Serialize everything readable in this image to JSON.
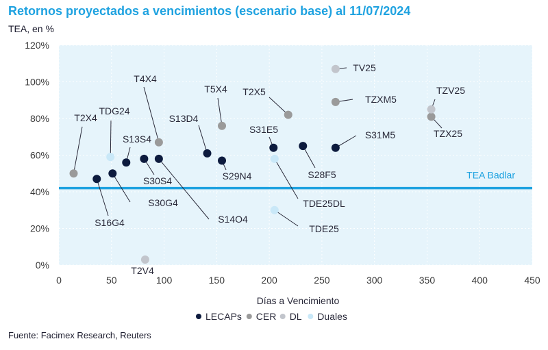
{
  "header": {
    "title": "Retornos proyectados a vencimientos (escenario base) al 11/07/2024",
    "subtitle": "TEA, en %"
  },
  "source": "Fuente: Facimex Research, Reuters",
  "colors": {
    "title": "#1ea2e0",
    "plot_bg": "#e6f4fb",
    "ref_line": "#1ea2e0",
    "LECAPs": "#0d1b3e",
    "CER": "#9a9a9a",
    "DL": "#c2c5cc",
    "Duales": "#c9e8f8"
  },
  "chart_data": {
    "type": "scatter",
    "xlabel": "Días a Vencimiento",
    "ylabel": "TEA, en %",
    "xlim": [
      0,
      450
    ],
    "ylim": [
      0,
      120
    ],
    "x_ticks": [
      0,
      50,
      100,
      150,
      200,
      250,
      300,
      350,
      400,
      450
    ],
    "y_ticks": [
      0,
      20,
      40,
      60,
      80,
      100,
      120
    ],
    "y_tick_labels": [
      "0%",
      "20%",
      "40%",
      "60%",
      "80%",
      "100%",
      "120%"
    ],
    "reference_line": {
      "label": "TEA Badlar",
      "y": 42
    },
    "legend": [
      "LECAPs",
      "CER",
      "DL",
      "Duales"
    ],
    "series": [
      {
        "name": "LECAPs",
        "points": [
          {
            "label": "S16G4",
            "x": 36,
            "y": 47
          },
          {
            "label": "S30G4",
            "x": 51,
            "y": 50
          },
          {
            "label": "S13S4",
            "x": 64,
            "y": 56
          },
          {
            "label": "S30S4",
            "x": 81,
            "y": 58
          },
          {
            "label": "S14O4",
            "x": 95,
            "y": 58
          },
          {
            "label": "S13D4",
            "x": 141,
            "y": 61
          },
          {
            "label": "S29N4",
            "x": 155,
            "y": 57
          },
          {
            "label": "S31E5",
            "x": 204,
            "y": 64
          },
          {
            "label": "S28F5",
            "x": 232,
            "y": 65
          },
          {
            "label": "S31M5",
            "x": 263,
            "y": 64
          }
        ]
      },
      {
        "name": "CER",
        "points": [
          {
            "label": "T2X4",
            "x": 14,
            "y": 50
          },
          {
            "label": "T4X4",
            "x": 95,
            "y": 67
          },
          {
            "label": "T5X4",
            "x": 155,
            "y": 76
          },
          {
            "label": "T2X5",
            "x": 218,
            "y": 82
          },
          {
            "label": "TZXM5",
            "x": 263,
            "y": 89
          },
          {
            "label": "TZX25",
            "x": 354,
            "y": 81
          }
        ]
      },
      {
        "name": "DL",
        "points": [
          {
            "label": "T2V4",
            "x": 82,
            "y": 3
          },
          {
            "label": "TV25",
            "x": 263,
            "y": 107
          },
          {
            "label": "TZV25",
            "x": 354,
            "y": 85
          }
        ]
      },
      {
        "name": "Duales",
        "points": [
          {
            "label": "TDG24",
            "x": 49,
            "y": 59
          },
          {
            "label": "TDE25DL",
            "x": 205,
            "y": 58
          },
          {
            "label": "TDE25",
            "x": 205,
            "y": 30
          }
        ]
      }
    ]
  }
}
